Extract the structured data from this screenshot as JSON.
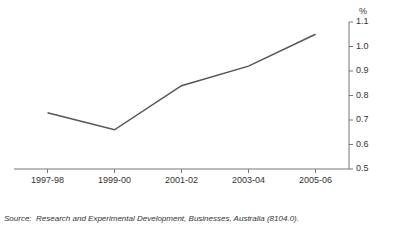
{
  "chart_data": {
    "type": "line",
    "categories": [
      "1997-98",
      "1999-00",
      "2001-02",
      "2003-04",
      "2005-06"
    ],
    "values": [
      0.73,
      0.66,
      0.84,
      0.92,
      1.05
    ],
    "color": "#555555",
    "y_label": "%",
    "ylim": [
      0.5,
      1.1
    ],
    "yticks": [
      0.5,
      0.6,
      0.7,
      0.8,
      0.9,
      {
        "value": 1.0,
        "label": "1.0"
      },
      1.1
    ],
    "grid": false,
    "annotations": [
      "Source:  Research and Experimental Development, Businesses, Australia (8104.0)."
    ]
  }
}
